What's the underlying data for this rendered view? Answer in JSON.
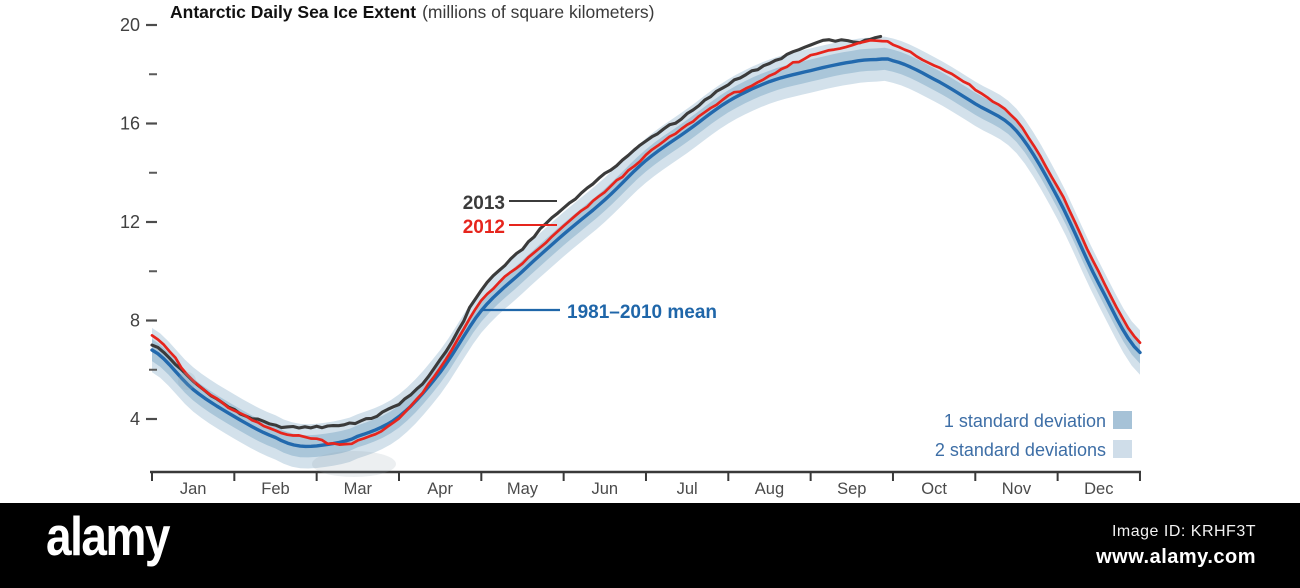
{
  "title": "Antarctic Daily Sea Ice Extent",
  "subtitle": "(millions of square kilometers)",
  "watermark": {
    "logo": "alamy",
    "image_id": "Image ID: KRHF3T",
    "url": "www.alamy.com"
  },
  "chart_data": {
    "type": "line",
    "title": "Antarctic Daily Sea Ice Extent",
    "units": "millions of square kilometers",
    "grid": false,
    "legend_position": "bottom-right",
    "x_axis": {
      "tick_labels": [
        "Jan",
        "Feb",
        "Mar",
        "Apr",
        "May",
        "Jun",
        "Jul",
        "Aug",
        "Sep",
        "Oct",
        "Nov",
        "Dec"
      ],
      "range_months": [
        0,
        12
      ]
    },
    "y_axis": {
      "major_ticks": [
        20,
        16,
        12,
        8,
        4
      ],
      "minor_ticks": [
        18,
        14,
        10,
        6
      ],
      "range": [
        1.8,
        20.2
      ]
    },
    "series": [
      {
        "name": "2013",
        "color": "#3b3b3b",
        "x_months": [
          0,
          0.5,
          1,
          1.5,
          2,
          2.4,
          3,
          3.5,
          4,
          4.5,
          5,
          5.5,
          6,
          6.5,
          7,
          7.5,
          8,
          8.3,
          8.6,
          8.85
        ],
        "values": [
          7.0,
          5.5,
          4.3,
          3.75,
          3.7,
          3.8,
          4.6,
          6.4,
          9.2,
          10.9,
          12.6,
          13.9,
          15.25,
          16.4,
          17.6,
          18.4,
          19.2,
          19.4,
          19.3,
          19.5
        ]
      },
      {
        "name": "2012",
        "color": "#e6251d",
        "x_months": [
          0,
          0.5,
          1,
          1.5,
          2,
          2.2,
          2.5,
          3,
          3.5,
          4,
          4.5,
          5,
          5.5,
          6,
          6.5,
          7,
          7.5,
          8,
          8.5,
          8.8,
          9,
          9.5,
          10,
          10.5,
          11,
          11.5,
          12
        ],
        "values": [
          7.4,
          5.6,
          4.35,
          3.5,
          3.15,
          3.0,
          3.1,
          4.0,
          6.05,
          8.8,
          10.3,
          11.8,
          13.2,
          14.7,
          15.9,
          17.1,
          17.9,
          18.8,
          19.2,
          19.4,
          19.15,
          18.4,
          17.4,
          16.1,
          13.4,
          9.9,
          7.1
        ]
      },
      {
        "name": "1981–2010 mean",
        "color": "#2269ad",
        "x_months": [
          0,
          0.5,
          1,
          1.5,
          1.8,
          2.2,
          2.5,
          3,
          3.5,
          4,
          4.5,
          5,
          5.5,
          6,
          6.5,
          7,
          7.5,
          8,
          8.5,
          8.8,
          9,
          9.5,
          10,
          10.5,
          11,
          11.5,
          12
        ],
        "values": [
          6.8,
          5.2,
          4.1,
          3.25,
          2.9,
          3.0,
          3.3,
          4.1,
          5.9,
          8.4,
          10.0,
          11.5,
          12.9,
          14.5,
          15.7,
          16.9,
          17.7,
          18.15,
          18.5,
          18.6,
          18.55,
          17.8,
          16.8,
          15.7,
          13.0,
          9.5,
          6.7
        ]
      }
    ],
    "bands": {
      "sigma1_offset": 0.45,
      "sigma1_color": "#aac6d9",
      "sigma2_offset": 0.9,
      "sigma2_color": "#d3e1eb"
    },
    "annotations": [
      {
        "label": "2013",
        "color": "#3b3b3b"
      },
      {
        "label": "2012",
        "color": "#e6251d"
      },
      {
        "label": "1981–2010 mean",
        "color": "#1f66a9"
      }
    ],
    "legend": [
      {
        "label": "1 standard deviation",
        "swatch": "#a6c2d7"
      },
      {
        "label": "2 standard deviations",
        "swatch": "#cfdde9"
      }
    ]
  }
}
